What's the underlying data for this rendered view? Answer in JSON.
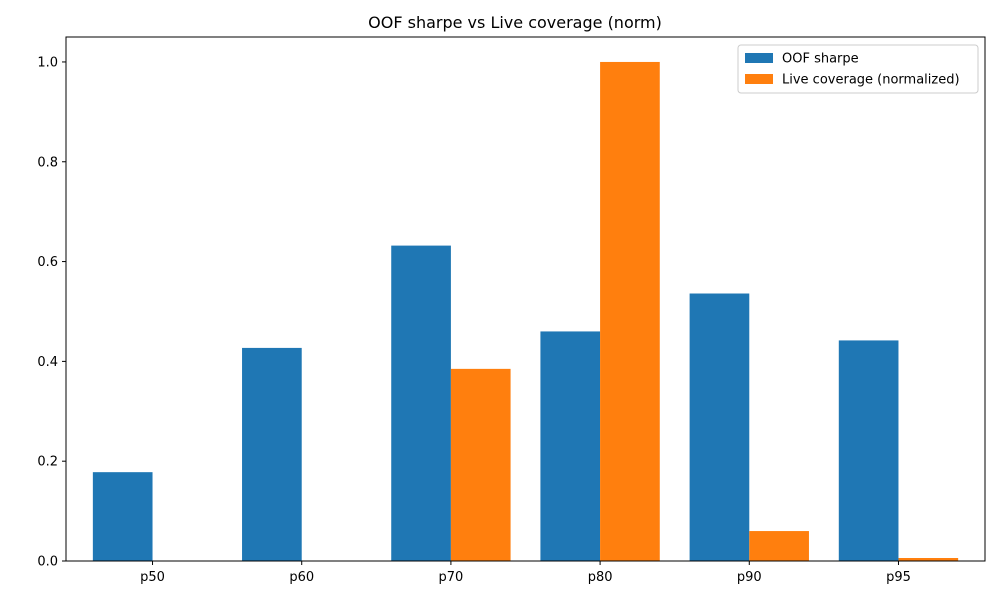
{
  "chart_data": {
    "type": "bar",
    "title": "OOF sharpe vs Live coverage (norm)",
    "xlabel": "",
    "ylabel": "",
    "categories": [
      "p50",
      "p60",
      "p70",
      "p80",
      "p90",
      "p95"
    ],
    "series": [
      {
        "name": "OOF sharpe",
        "color": "#1f77b4",
        "values": [
          0.178,
          0.427,
          0.632,
          0.46,
          0.536,
          0.442
        ]
      },
      {
        "name": "Live coverage (normalized)",
        "color": "#ff7f0e",
        "values": [
          0.0,
          0.0,
          0.385,
          1.0,
          0.06,
          0.006
        ]
      }
    ],
    "ylim": [
      0,
      1.05
    ],
    "yticks": [
      "0.0",
      "0.2",
      "0.4",
      "0.6",
      "0.8",
      "1.0"
    ],
    "legend_position": "top-right",
    "grid": false
  }
}
